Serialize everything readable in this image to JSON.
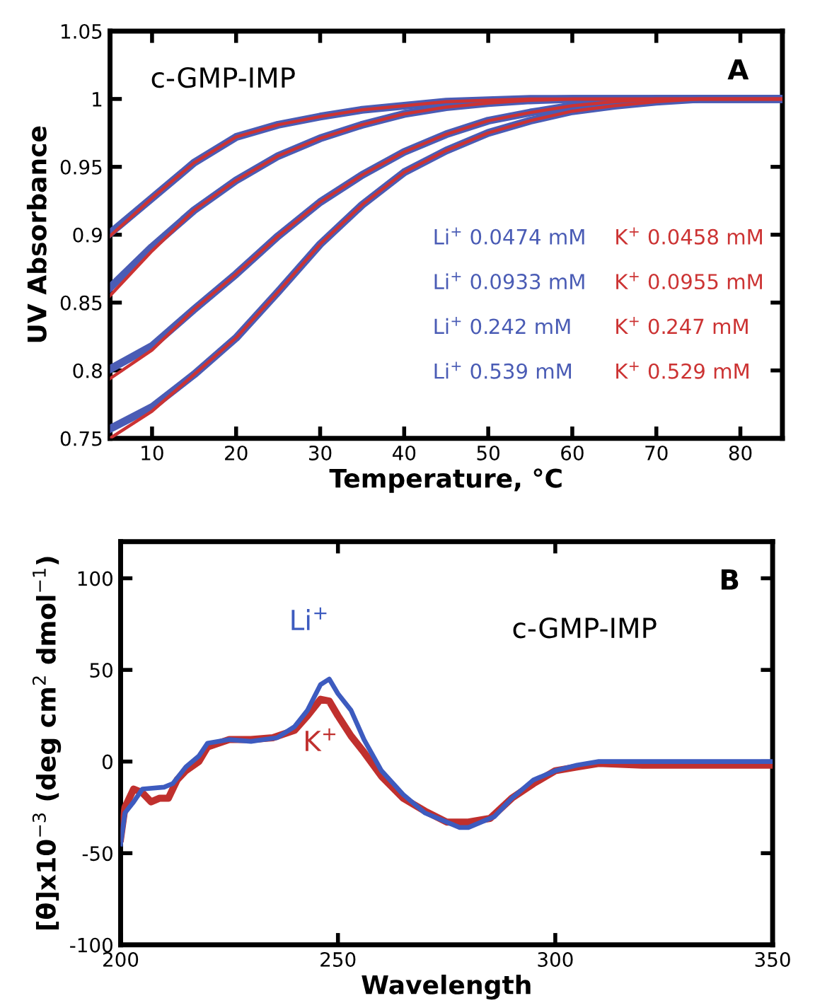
{
  "chart_data": [
    {
      "type": "line",
      "xlabel": "Temperature, °C",
      "ylabel": "UV Absorbance",
      "annotations": [
        "c-GMP-IMP",
        "A",
        "Li$^{+}$ 0.0474 mM",
        "Li$^{+}$ 0.0933 mM",
        "Li$^{+}$ 0.242 mM",
        "Li$^{+}$ 0.539 mM",
        "K$^{+}$ 0.0458 mM",
        "K$^{+}$ 0.0955 mM",
        "K$^{+}$ 0.247 mM",
        "K$^{+}$ 0.529 mM"
      ],
      "xlim": [
        5,
        85
      ],
      "xticks": [
        10,
        20,
        30,
        40,
        50,
        60,
        70,
        80
      ],
      "ylim": [
        0.75,
        1.05
      ],
      "yticks": [
        0.75,
        0.8,
        0.85,
        0.9,
        0.95,
        1,
        1.05
      ],
      "grid": false,
      "legend": false,
      "line_style": "solid",
      "x": [
        5,
        10,
        15,
        20,
        25,
        30,
        35,
        40,
        45,
        50,
        55,
        60,
        65,
        70,
        75,
        80,
        85
      ],
      "series": [
        {
          "color": "#4a5cb5",
          "values": [
            0.901,
            0.927,
            0.953,
            0.972,
            0.981,
            0.987,
            0.992,
            0.995,
            0.998,
            0.999,
            1.0,
            1.0,
            1.0,
            1.0,
            1.0,
            1.0,
            1.0
          ]
        },
        {
          "color": "#4a5cb5",
          "values": [
            0.861,
            0.891,
            0.918,
            0.94,
            0.958,
            0.971,
            0.981,
            0.989,
            0.994,
            0.997,
            0.999,
            1.0,
            1.0,
            1.0,
            1.0,
            1.0,
            1.0
          ]
        },
        {
          "color": "#4a5cb5",
          "values": [
            0.801,
            0.818,
            0.845,
            0.871,
            0.899,
            0.924,
            0.944,
            0.961,
            0.974,
            0.984,
            0.99,
            0.995,
            0.998,
            1.0,
            1.0,
            1.0,
            1.0
          ]
        },
        {
          "color": "#4a5cb5",
          "values": [
            0.757,
            0.773,
            0.797,
            0.824,
            0.858,
            0.893,
            0.922,
            0.946,
            0.962,
            0.975,
            0.984,
            0.991,
            0.995,
            0.998,
            1.0,
            1.0,
            1.0
          ]
        },
        {
          "color": "#cc3333",
          "values": [
            0.899,
            0.927,
            0.953,
            0.972,
            0.981,
            0.987,
            0.992,
            0.995,
            0.998,
            0.999,
            1.0,
            1.0,
            1.0,
            1.0,
            1.0,
            1.0,
            1.0
          ]
        },
        {
          "color": "#cc3333",
          "values": [
            0.855,
            0.888,
            0.918,
            0.94,
            0.958,
            0.971,
            0.981,
            0.989,
            0.994,
            0.997,
            0.999,
            1.0,
            1.0,
            1.0,
            1.0,
            1.0,
            1.0
          ]
        },
        {
          "color": "#cc3333",
          "values": [
            0.794,
            0.815,
            0.845,
            0.871,
            0.899,
            0.924,
            0.944,
            0.961,
            0.974,
            0.984,
            0.99,
            0.995,
            0.998,
            1.0,
            1.0,
            1.0,
            1.0
          ]
        },
        {
          "color": "#cc3333",
          "values": [
            0.75,
            0.77,
            0.797,
            0.824,
            0.858,
            0.893,
            0.922,
            0.946,
            0.962,
            0.975,
            0.984,
            0.991,
            0.995,
            0.998,
            1.0,
            1.0,
            1.0
          ]
        }
      ]
    },
    {
      "type": "line",
      "xlabel": "Wavelength",
      "ylabel": "[θ]x10$^{−3}$ (deg cm$^{2}$ dmol$^{−1}$)",
      "annotations": [
        "B",
        "c-GMP-IMP"
      ],
      "xlim": [
        200,
        350
      ],
      "xticks": [
        200,
        250,
        300,
        350
      ],
      "ylim": [
        -100,
        120
      ],
      "yticks": [
        -100,
        -50,
        0,
        50,
        100
      ],
      "grid": false,
      "legend": false,
      "line_style": "solid",
      "series": [
        {
          "name": "Li$^{+}$",
          "color": "#3d5bbf",
          "x": [
            200,
            201,
            203,
            205,
            210,
            212,
            215,
            218,
            220,
            225,
            230,
            233,
            236,
            240,
            243,
            246,
            248,
            250,
            253,
            256,
            260,
            265,
            270,
            275,
            278,
            280,
            283,
            286,
            290,
            295,
            300,
            305,
            310,
            320,
            330,
            350
          ],
          "values": [
            -45,
            -28,
            -22,
            -15,
            -14,
            -12,
            -3,
            3,
            10,
            12,
            11,
            12,
            13,
            19,
            28,
            42,
            45,
            37,
            28,
            12,
            -5,
            -18,
            -28,
            -33,
            -36,
            -36,
            -33,
            -30,
            -20,
            -10,
            -5,
            -2,
            0,
            0,
            0,
            0
          ]
        },
        {
          "name": "K$^{+}$",
          "color": "#c0302e",
          "x": [
            200,
            201,
            203,
            205,
            207,
            209,
            211,
            213,
            215,
            218,
            220,
            225,
            230,
            235,
            240,
            243,
            246,
            248,
            250,
            253,
            256,
            260,
            265,
            270,
            275,
            280,
            285,
            290,
            295,
            300,
            305,
            310,
            320,
            330,
            350
          ],
          "values": [
            -42,
            -25,
            -15,
            -17,
            -22,
            -20,
            -20,
            -10,
            -5,
            0,
            8,
            12,
            12,
            13,
            17,
            25,
            34,
            33,
            25,
            14,
            5,
            -8,
            -20,
            -27,
            -33,
            -33,
            -31,
            -20,
            -12,
            -5,
            -3,
            -1,
            -2,
            -2,
            -2
          ]
        }
      ]
    }
  ]
}
